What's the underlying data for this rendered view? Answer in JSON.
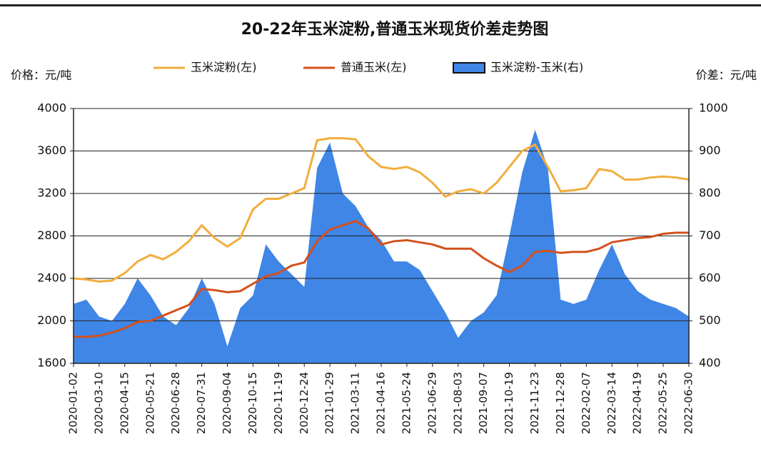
{
  "chart_data": {
    "type": "line-area",
    "title": "20-22年玉米淀粉,普通玉米现货价差走势图",
    "ylabel": "价格：元/吨",
    "y2label": "价差：元/吨",
    "categories": [
      "2020-01-02",
      null,
      "2020-03-10",
      null,
      "2020-04-15",
      null,
      "2020-05-21",
      null,
      "2020-06-28",
      null,
      "2020-07-31",
      null,
      "2020-09-04",
      null,
      "2020-10-15",
      null,
      "2020-11-19",
      null,
      "2020-12-24",
      null,
      "2021-01-29",
      null,
      "2021-03-11",
      null,
      "2021-04-16",
      null,
      "2021-05-24",
      null,
      "2021-06-29",
      null,
      "2021-08-03",
      null,
      "2021-09-07",
      null,
      "2021-10-19",
      null,
      "2021-11-23",
      null,
      "2021-12-28",
      null,
      "2022-02-07",
      null,
      "2022-03-14",
      null,
      "2022-04-19",
      null,
      "2022-05-25",
      null,
      "2022-06-30"
    ],
    "series": [
      {
        "name": "玉米淀粉-玉米(右)",
        "kind": "area",
        "axis": "y2",
        "color": "#3f86e6",
        "values": [
          540,
          550,
          510,
          500,
          540,
          600,
          560,
          510,
          490,
          530,
          600,
          540,
          440,
          530,
          560,
          680,
          640,
          610,
          580,
          860,
          920,
          800,
          770,
          720,
          690,
          640,
          640,
          620,
          570,
          520,
          460,
          500,
          520,
          560,
          700,
          850,
          950,
          860,
          550,
          540,
          550,
          620,
          680,
          610,
          570,
          550,
          540,
          530,
          510
        ]
      },
      {
        "name": "玉米淀粉(左)",
        "kind": "line",
        "color": "#f2ad3c",
        "values": [
          2400,
          2390,
          2370,
          2380,
          2450,
          2560,
          2620,
          2580,
          2650,
          2750,
          2900,
          2780,
          2700,
          2780,
          3050,
          3150,
          3150,
          3200,
          3250,
          3700,
          3720,
          3720,
          3710,
          3550,
          3450,
          3430,
          3450,
          3400,
          3300,
          3170,
          3220,
          3240,
          3200,
          3300,
          3450,
          3600,
          3660,
          3450,
          3220,
          3230,
          3250,
          3430,
          3410,
          3330,
          3330,
          3350,
          3360,
          3350,
          3330
        ]
      },
      {
        "name": "普通玉米(左)",
        "kind": "line",
        "color": "#d4501c",
        "values": [
          1850,
          1850,
          1860,
          1890,
          1930,
          1990,
          2000,
          2050,
          2100,
          2150,
          2300,
          2290,
          2270,
          2280,
          2350,
          2420,
          2450,
          2520,
          2550,
          2750,
          2860,
          2900,
          2940,
          2870,
          2720,
          2750,
          2760,
          2740,
          2720,
          2680,
          2680,
          2680,
          2590,
          2520,
          2460,
          2520,
          2650,
          2660,
          2640,
          2650,
          2650,
          2680,
          2740,
          2760,
          2780,
          2790,
          2820,
          2830,
          2830
        ]
      }
    ],
    "ylim": [
      1600,
      4000
    ],
    "yticks": [
      1600,
      2000,
      2400,
      2800,
      3200,
      3600,
      4000
    ],
    "y2lim": [
      400,
      1000
    ],
    "y2ticks": [
      400,
      500,
      600,
      700,
      800,
      900,
      1000
    ],
    "grid": true
  }
}
